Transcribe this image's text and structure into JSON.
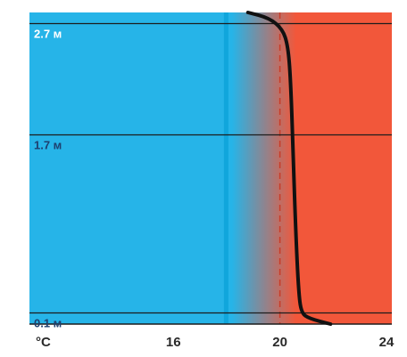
{
  "chart_data": {
    "type": "line",
    "title": "",
    "xlabel": "",
    "ylabel": "",
    "x_unit": "°C",
    "xlim": [
      10.6,
      24.2
    ],
    "ylim": [
      0,
      2.8
    ],
    "x_ticks": [
      16,
      20,
      24
    ],
    "height_labels": [
      {
        "height": 2.7,
        "label": "2.7 м"
      },
      {
        "height": 1.7,
        "label": "1.7 м"
      },
      {
        "height": 0.1,
        "label": "0.1 м"
      }
    ],
    "zones": {
      "cool_color": "#26b4e8",
      "warm_color": "#f2573a",
      "stripe_color": "#10a6dc",
      "gradient_from_temp": 18.2,
      "gradient_to_temp": 20.6
    },
    "reference_line": {
      "temp": 20.0,
      "style": "dashed",
      "color": "#c83c28"
    },
    "series": [
      {
        "points": [
          {
            "t": 21.9,
            "h": 0.0
          },
          {
            "t": 21.1,
            "h": 0.05
          },
          {
            "t": 20.8,
            "h": 0.1
          },
          {
            "t": 20.7,
            "h": 0.3
          },
          {
            "t": 20.6,
            "h": 0.8
          },
          {
            "t": 20.5,
            "h": 1.5
          },
          {
            "t": 20.4,
            "h": 2.2
          },
          {
            "t": 20.3,
            "h": 2.5
          },
          {
            "t": 20.1,
            "h": 2.65
          },
          {
            "t": 19.6,
            "h": 2.75
          },
          {
            "t": 18.8,
            "h": 2.8
          }
        ]
      }
    ]
  }
}
